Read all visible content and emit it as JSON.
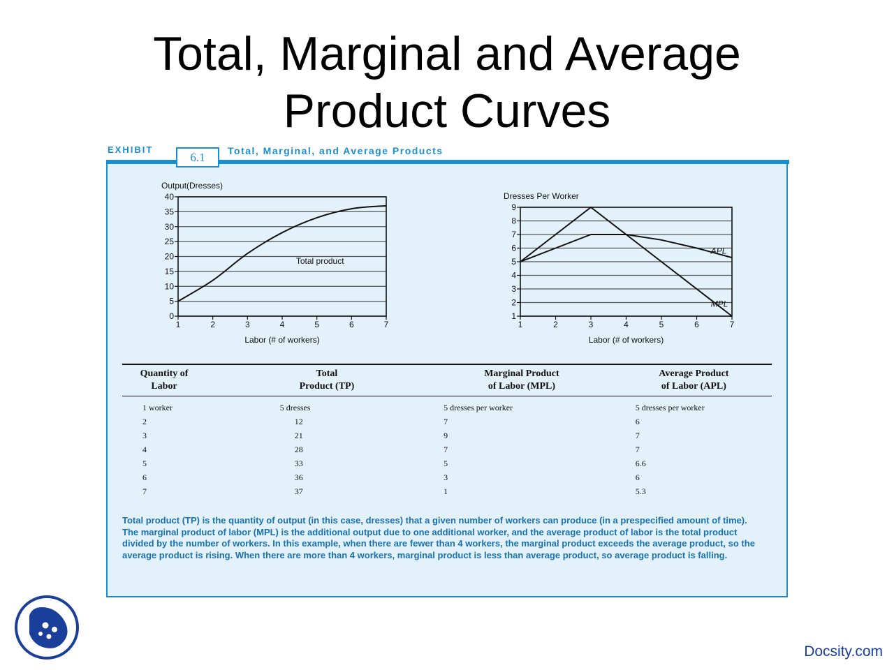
{
  "slide": {
    "title_line1": "Total, Marginal and Average",
    "title_line2": "Product Curves",
    "footer": "Docsity.com"
  },
  "exhibit": {
    "label": "EXHIBIT",
    "number": "6.1",
    "title": "Total, Marginal, and Average Products",
    "accent_color": "#1a8fd0",
    "panel_color": "#e3f1fa"
  },
  "chart_data": [
    {
      "type": "line",
      "ylabel": "Output(Dresses)",
      "xlabel": "Labor (# of workers)",
      "x": [
        1,
        2,
        3,
        4,
        5,
        6,
        7
      ],
      "xlim": [
        1,
        7
      ],
      "ylim": [
        0,
        40
      ],
      "yticks": [
        0,
        5,
        10,
        15,
        20,
        25,
        30,
        35,
        40
      ],
      "grid": true,
      "series": [
        {
          "name": "Total product",
          "values": [
            5,
            12,
            21,
            28,
            33,
            36,
            37
          ],
          "smooth": true
        }
      ],
      "annotations": [
        {
          "text": "Total product",
          "x": 4.4,
          "y": 17.5
        }
      ]
    },
    {
      "type": "line",
      "ylabel": "Dresses Per Worker",
      "xlabel": "Labor (# of workers)",
      "x": [
        1,
        2,
        3,
        4,
        5,
        6,
        7
      ],
      "xlim": [
        1,
        7
      ],
      "ylim": [
        1,
        9
      ],
      "yticks": [
        1,
        2,
        3,
        4,
        5,
        6,
        7,
        8,
        9
      ],
      "grid": true,
      "series": [
        {
          "name": "APL",
          "values": [
            5,
            6,
            7,
            7,
            6.6,
            6,
            5.3
          ]
        },
        {
          "name": "MPL",
          "values": [
            5,
            7,
            9,
            7,
            5,
            3,
            1
          ]
        }
      ],
      "annotations": [
        {
          "text": "APL",
          "x": 6.4,
          "y": 5.6
        },
        {
          "text": "MPL",
          "x": 6.4,
          "y": 1.7
        }
      ]
    },
    {
      "type": "table",
      "columns": [
        [
          "Quantity of",
          "Labor"
        ],
        [
          "Total",
          "Product (TP)"
        ],
        [
          "Marginal Product",
          "of Labor (MPL)"
        ],
        [
          "Average Product",
          "of Labor (APL)"
        ]
      ],
      "rows": [
        [
          "1 worker",
          "5 dresses",
          "5 dresses per worker",
          "5 dresses per worker"
        ],
        [
          "2",
          "12",
          "7",
          "6"
        ],
        [
          "3",
          "21",
          "9",
          "7"
        ],
        [
          "4",
          "28",
          "7",
          "7"
        ],
        [
          "5",
          "33",
          "5",
          "6.6"
        ],
        [
          "6",
          "36",
          "3",
          "6"
        ],
        [
          "7",
          "37",
          "1",
          "5.3"
        ]
      ]
    }
  ],
  "caption": "Total product (TP) is the quantity of output (in this case, dresses) that a given number of workers can produce (in a prespecified amount of time). The marginal product of labor (MPL) is the additional output due to one additional worker, and the average product of labor is the total product divided by the number of workers. In this example, when there are fewer than 4 workers, the marginal product exceeds the average product, so the average product is rising. When there are more than 4 workers, marginal product is less than average product, so average product is falling."
}
